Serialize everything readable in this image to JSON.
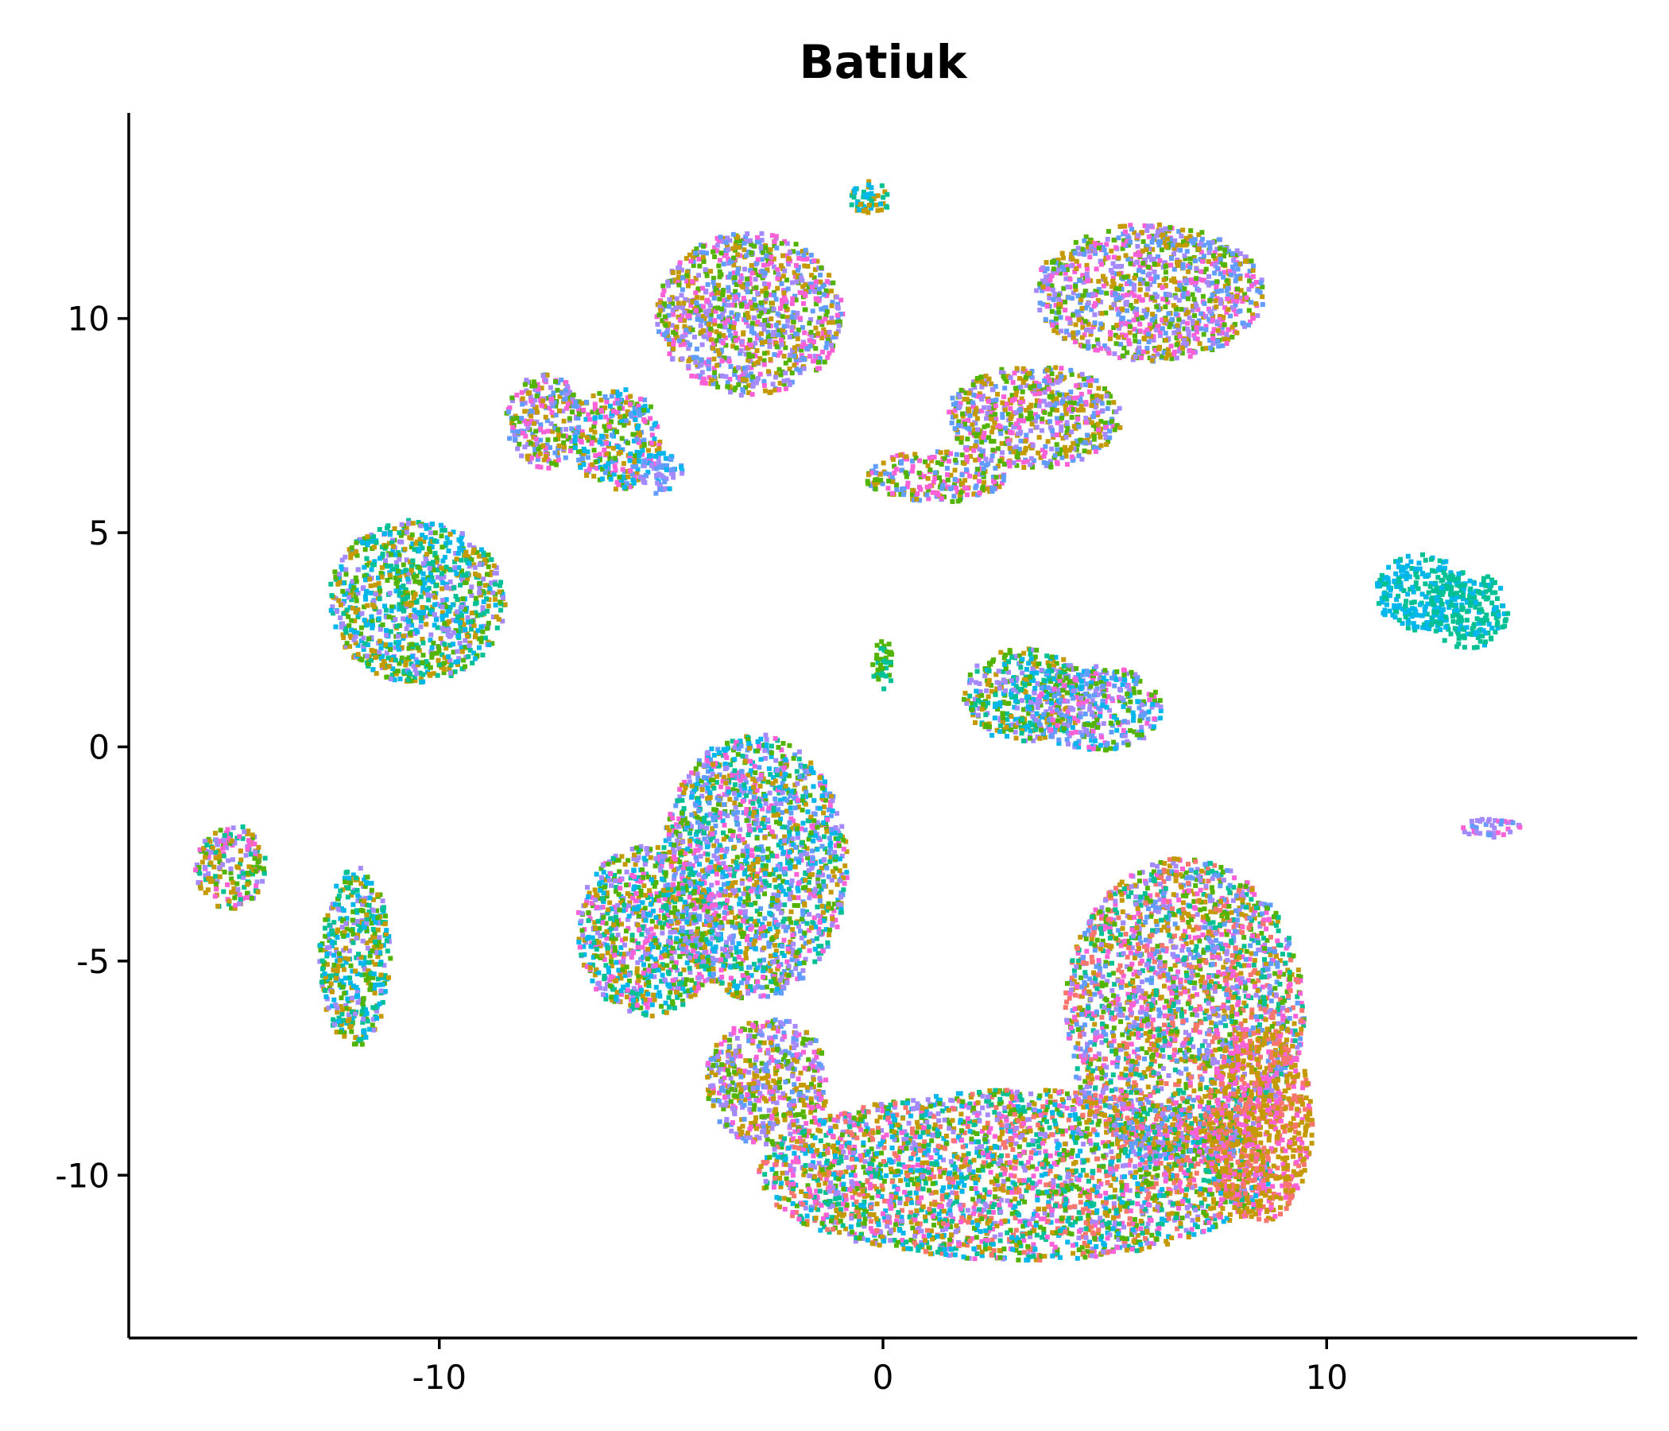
{
  "chart_data": {
    "type": "scatter",
    "title": "Batiuk",
    "xlabel": "",
    "ylabel": "",
    "xlim": [
      -17,
      17
    ],
    "ylim": [
      -13.8,
      14.8
    ],
    "x_ticks": [
      -10,
      0,
      10
    ],
    "x_tick_labels": [
      "-10",
      "0",
      "10"
    ],
    "y_ticks": [
      -10,
      -5,
      0,
      5,
      10
    ],
    "y_tick_labels": [
      "-10",
      "-5",
      "0",
      "5",
      "10"
    ],
    "grid": false,
    "legend": "none",
    "palette": [
      "#F8766D",
      "#C49A00",
      "#53B400",
      "#00C094",
      "#00B6EB",
      "#A58AFF",
      "#FB61D7",
      "#619CFF",
      "#00BA38",
      "#B79F00"
    ],
    "clusters": [
      {
        "cx": -10.5,
        "cy": 3.4,
        "rx": 2.0,
        "ry": 1.9,
        "colors": [
          1,
          2,
          3,
          4,
          5
        ]
      },
      {
        "cx": -7.6,
        "cy": 7.6,
        "rx": 0.9,
        "ry": 1.1,
        "colors": [
          1,
          2,
          5,
          6,
          7
        ]
      },
      {
        "cx": -6.0,
        "cy": 7.2,
        "rx": 1.0,
        "ry": 1.2,
        "colors": [
          1,
          2,
          4,
          7,
          6
        ]
      },
      {
        "cx": -5.0,
        "cy": 6.4,
        "rx": 0.5,
        "ry": 0.5,
        "colors": [
          4,
          7,
          5
        ]
      },
      {
        "cx": -3.0,
        "cy": 10.1,
        "rx": 2.1,
        "ry": 1.9,
        "colors": [
          1,
          2,
          5,
          6,
          7
        ]
      },
      {
        "cx": -0.3,
        "cy": 12.8,
        "rx": 0.5,
        "ry": 0.4,
        "colors": [
          1,
          3,
          4
        ]
      },
      {
        "cx": 6.0,
        "cy": 10.6,
        "rx": 2.6,
        "ry": 1.6,
        "colors": [
          1,
          2,
          5,
          6,
          7
        ]
      },
      {
        "cx": 3.4,
        "cy": 7.7,
        "rx": 2.0,
        "ry": 1.2,
        "colors": [
          1,
          2,
          6,
          7,
          5
        ]
      },
      {
        "cx": 1.2,
        "cy": 6.3,
        "rx": 1.6,
        "ry": 0.6,
        "colors": [
          1,
          2,
          6,
          7
        ]
      },
      {
        "cx": 12.1,
        "cy": 3.6,
        "rx": 1.0,
        "ry": 0.9,
        "colors": [
          4,
          4,
          3
        ]
      },
      {
        "cx": 13.2,
        "cy": 3.2,
        "rx": 0.9,
        "ry": 0.9,
        "colors": [
          3,
          3,
          4
        ]
      },
      {
        "cx": 13.7,
        "cy": -1.9,
        "rx": 0.7,
        "ry": 0.22,
        "colors": [
          5,
          6,
          7
        ]
      },
      {
        "cx": 3.2,
        "cy": 1.2,
        "rx": 1.4,
        "ry": 1.1,
        "colors": [
          1,
          2,
          3,
          4,
          5
        ]
      },
      {
        "cx": 4.8,
        "cy": 0.9,
        "rx": 1.5,
        "ry": 1.0,
        "colors": [
          2,
          4,
          5,
          6,
          7
        ]
      },
      {
        "cx": 0.0,
        "cy": 1.9,
        "rx": 0.25,
        "ry": 0.6,
        "colors": [
          2,
          3
        ]
      },
      {
        "cx": -5.3,
        "cy": -4.3,
        "rx": 1.6,
        "ry": 2.0,
        "colors": [
          1,
          4,
          5,
          6,
          2,
          3
        ]
      },
      {
        "cx": -2.9,
        "cy": -2.8,
        "rx": 2.1,
        "ry": 3.1,
        "colors": [
          1,
          2,
          3,
          4,
          5,
          6,
          7
        ]
      },
      {
        "cx": -2.6,
        "cy": -7.8,
        "rx": 1.4,
        "ry": 1.5,
        "colors": [
          1,
          2,
          5,
          6,
          7
        ]
      },
      {
        "cx": 3.0,
        "cy": -10.0,
        "rx": 5.8,
        "ry": 2.0,
        "colors": [
          0,
          1,
          2,
          3,
          4,
          5,
          6
        ]
      },
      {
        "cx": 6.8,
        "cy": -6.2,
        "rx": 2.7,
        "ry": 3.6,
        "colors": [
          0,
          1,
          2,
          3,
          5,
          6,
          7
        ]
      },
      {
        "cx": 8.5,
        "cy": -8.8,
        "rx": 1.2,
        "ry": 2.3,
        "colors": [
          1,
          1,
          0,
          6
        ]
      },
      {
        "cx": -14.7,
        "cy": -2.8,
        "rx": 0.8,
        "ry": 1.0,
        "colors": [
          1,
          2,
          3,
          5,
          6
        ]
      },
      {
        "cx": -11.9,
        "cy": -4.9,
        "rx": 0.8,
        "ry": 2.1,
        "colors": [
          1,
          2,
          3,
          4,
          5
        ]
      }
    ]
  }
}
